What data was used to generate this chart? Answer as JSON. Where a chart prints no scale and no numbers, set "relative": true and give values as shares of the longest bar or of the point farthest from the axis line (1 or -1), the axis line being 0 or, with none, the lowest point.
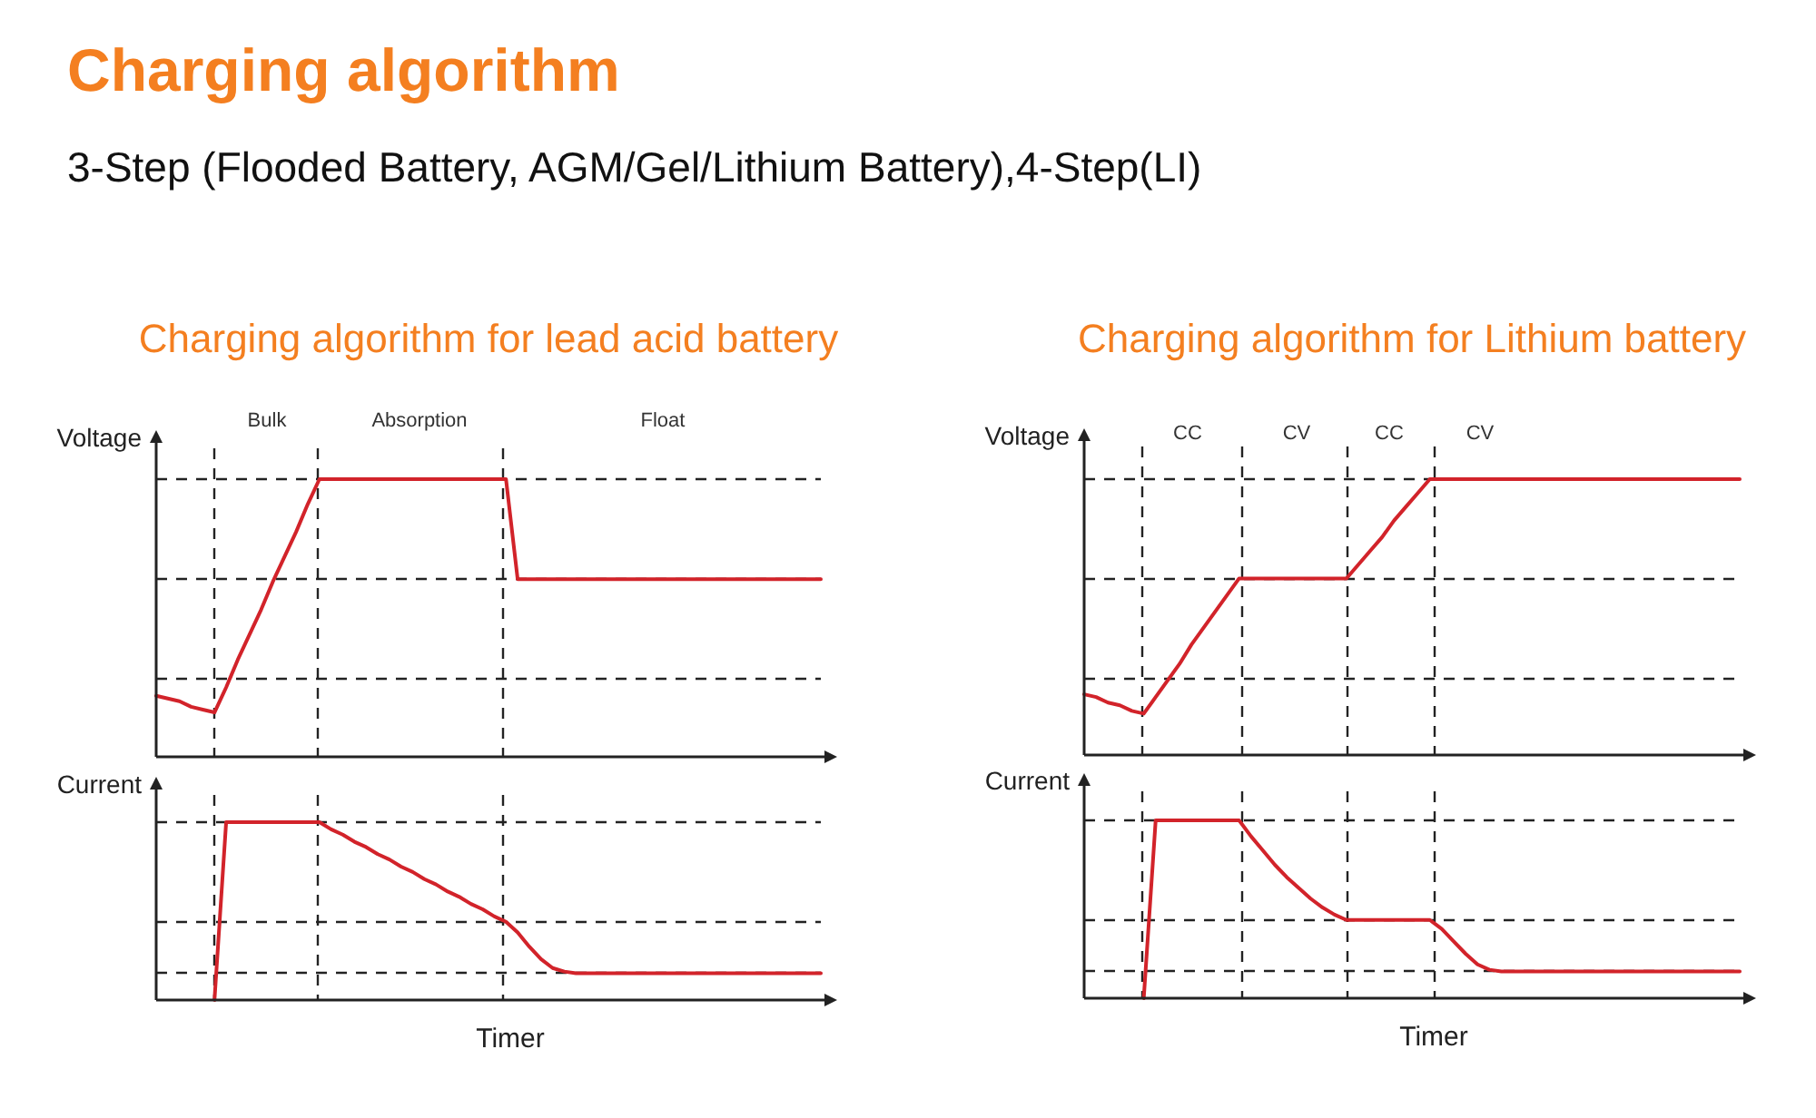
{
  "chart_data": [
    {
      "type": "line",
      "title": "Charging algorithm for lead acid battery",
      "ylabel": "Voltage",
      "relative": true,
      "grid": true,
      "annotations": [
        "Charging algorithm",
        "3-Step (Flooded Battery, AGM/Gel/Lithium Battery),4-Step(LI)",
        "Bulk",
        "Absorption",
        "Float"
      ],
      "categories": [
        null,
        null,
        null,
        null,
        null,
        null,
        null,
        null,
        null,
        null,
        null,
        null,
        null,
        null,
        null,
        null,
        null,
        null,
        null,
        null,
        null,
        null,
        null,
        null,
        null,
        null,
        null,
        null,
        null,
        null,
        null,
        null,
        null,
        null,
        null,
        null,
        null,
        null,
        null,
        null,
        null,
        null,
        null,
        null,
        null,
        null,
        null,
        null,
        null,
        null,
        null,
        null,
        null,
        null,
        null,
        null,
        null,
        null
      ],
      "series": [
        {
          "color": "#d2232a",
          "values": [
            0.22,
            0.21,
            0.2,
            0.18,
            0.17,
            0.16,
            0.25,
            0.35,
            0.44,
            0.53,
            0.63,
            0.72,
            0.81,
            0.91,
            1,
            1,
            1,
            1,
            1,
            1,
            1,
            1,
            1,
            1,
            1,
            1,
            1,
            1,
            1,
            1,
            1,
            0.64,
            0.64,
            0.64,
            0.64,
            0.64,
            0.64,
            0.64,
            0.64,
            0.64,
            0.64,
            0.64,
            0.64,
            0.64,
            0.64,
            0.64,
            0.64,
            0.64,
            0.64,
            0.64,
            0.64,
            0.64,
            0.64,
            0.64,
            0.64,
            0.64,
            0.64,
            0.64
          ]
        }
      ]
    },
    {
      "type": "line",
      "ylabel": "Current",
      "xlabel": "Timer",
      "relative": true,
      "grid": true,
      "categories": [
        null,
        null,
        null,
        null,
        null,
        null,
        null,
        null,
        null,
        null,
        null,
        null,
        null,
        null,
        null,
        null,
        null,
        null,
        null,
        null,
        null,
        null,
        null,
        null,
        null,
        null,
        null,
        null,
        null,
        null,
        null,
        null,
        null,
        null,
        null,
        null,
        null,
        null,
        null,
        null,
        null,
        null,
        null,
        null,
        null,
        null,
        null,
        null,
        null,
        null,
        null,
        null,
        null,
        null,
        null,
        null,
        null,
        null
      ],
      "series": [
        {
          "color": "#d2232a",
          "values": [
            null,
            null,
            null,
            null,
            null,
            0,
            1,
            1,
            1,
            1,
            1,
            1,
            1,
            1,
            1,
            0.96,
            0.93,
            0.89,
            0.86,
            0.82,
            0.79,
            0.75,
            0.72,
            0.68,
            0.65,
            0.61,
            0.58,
            0.54,
            0.51,
            0.47,
            0.44,
            0.38,
            0.3,
            0.23,
            0.18,
            0.16,
            0.15,
            0.15,
            0.15,
            0.15,
            0.15,
            0.15,
            0.15,
            0.15,
            0.15,
            0.15,
            0.15,
            0.15,
            0.15,
            0.15,
            0.15,
            0.15,
            0.15,
            0.15,
            0.15,
            0.15,
            0.15,
            0.15
          ]
        }
      ]
    },
    {
      "type": "line",
      "title": "Charging algorithm for Lithium battery",
      "ylabel": "Voltage",
      "relative": true,
      "grid": true,
      "annotations": [
        "CC",
        "CV",
        "CC",
        "CV"
      ],
      "categories": [
        null,
        null,
        null,
        null,
        null,
        null,
        null,
        null,
        null,
        null,
        null,
        null,
        null,
        null,
        null,
        null,
        null,
        null,
        null,
        null,
        null,
        null,
        null,
        null,
        null,
        null,
        null,
        null,
        null,
        null,
        null,
        null,
        null,
        null,
        null,
        null,
        null,
        null,
        null,
        null,
        null,
        null,
        null,
        null,
        null,
        null,
        null,
        null,
        null,
        null,
        null,
        null,
        null,
        null,
        null,
        null
      ],
      "series": [
        {
          "color": "#d2232a",
          "values": [
            0.22,
            0.21,
            0.19,
            0.18,
            0.16,
            0.15,
            0.21,
            0.27,
            0.33,
            0.4,
            0.46,
            0.52,
            0.58,
            0.64,
            0.64,
            0.64,
            0.64,
            0.64,
            0.64,
            0.64,
            0.64,
            0.64,
            0.64,
            0.69,
            0.74,
            0.79,
            0.85,
            0.9,
            0.95,
            1,
            1,
            1,
            1,
            1,
            1,
            1,
            1,
            1,
            1,
            1,
            1,
            1,
            1,
            1,
            1,
            1,
            1,
            1,
            1,
            1,
            1,
            1,
            1,
            1,
            1,
            1
          ]
        }
      ]
    },
    {
      "type": "line",
      "ylabel": "Current",
      "xlabel": "Timer",
      "relative": true,
      "grid": true,
      "categories": [
        null,
        null,
        null,
        null,
        null,
        null,
        null,
        null,
        null,
        null,
        null,
        null,
        null,
        null,
        null,
        null,
        null,
        null,
        null,
        null,
        null,
        null,
        null,
        null,
        null,
        null,
        null,
        null,
        null,
        null,
        null,
        null,
        null,
        null,
        null,
        null,
        null,
        null,
        null,
        null,
        null,
        null,
        null,
        null,
        null,
        null,
        null,
        null,
        null,
        null,
        null,
        null,
        null,
        null,
        null,
        null
      ],
      "series": [
        {
          "color": "#d2232a",
          "values": [
            null,
            null,
            null,
            null,
            null,
            0,
            1,
            1,
            1,
            1,
            1,
            1,
            1,
            1,
            0.91,
            0.83,
            0.75,
            0.68,
            0.62,
            0.56,
            0.51,
            0.47,
            0.44,
            0.44,
            0.44,
            0.44,
            0.44,
            0.44,
            0.44,
            0.44,
            0.39,
            0.32,
            0.25,
            0.19,
            0.16,
            0.15,
            0.15,
            0.15,
            0.15,
            0.15,
            0.15,
            0.15,
            0.15,
            0.15,
            0.15,
            0.15,
            0.15,
            0.15,
            0.15,
            0.15,
            0.15,
            0.15,
            0.15,
            0.15,
            0.15,
            0.15
          ]
        }
      ]
    }
  ]
}
